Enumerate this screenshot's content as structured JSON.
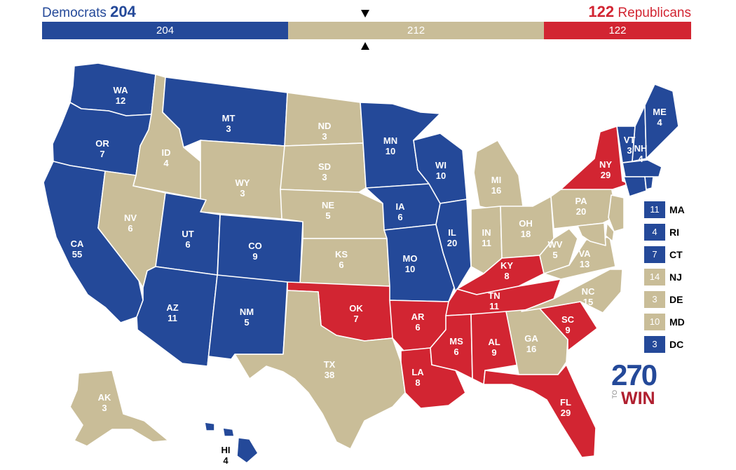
{
  "header": {
    "dem_label": "Democrats",
    "dem_total": "204",
    "rep_total": "122",
    "rep_label": "Republicans"
  },
  "bar": {
    "segments": [
      {
        "name": "democrat",
        "value": 204,
        "label": "204",
        "color": "#244999"
      },
      {
        "name": "tossup",
        "value": 212,
        "label": "212",
        "color": "#c9bd98"
      },
      {
        "name": "republican",
        "value": 122,
        "label": "122",
        "color": "#d22532"
      }
    ]
  },
  "colors": {
    "dem": "#244999",
    "rep": "#d22532",
    "tossup": "#c9bd98"
  },
  "states": [
    {
      "abbr": "WA",
      "ev": "12",
      "party": "dem"
    },
    {
      "abbr": "OR",
      "ev": "7",
      "party": "dem"
    },
    {
      "abbr": "CA",
      "ev": "55",
      "party": "dem"
    },
    {
      "abbr": "ID",
      "ev": "4",
      "party": "tossup"
    },
    {
      "abbr": "NV",
      "ev": "6",
      "party": "tossup"
    },
    {
      "abbr": "MT",
      "ev": "3",
      "party": "dem"
    },
    {
      "abbr": "WY",
      "ev": "3",
      "party": "tossup"
    },
    {
      "abbr": "UT",
      "ev": "6",
      "party": "dem"
    },
    {
      "abbr": "CO",
      "ev": "9",
      "party": "dem"
    },
    {
      "abbr": "AZ",
      "ev": "11",
      "party": "dem"
    },
    {
      "abbr": "NM",
      "ev": "5",
      "party": "dem"
    },
    {
      "abbr": "ND",
      "ev": "3",
      "party": "tossup"
    },
    {
      "abbr": "SD",
      "ev": "3",
      "party": "tossup"
    },
    {
      "abbr": "NE",
      "ev": "5",
      "party": "tossup"
    },
    {
      "abbr": "KS",
      "ev": "6",
      "party": "tossup"
    },
    {
      "abbr": "OK",
      "ev": "7",
      "party": "rep"
    },
    {
      "abbr": "TX",
      "ev": "38",
      "party": "tossup"
    },
    {
      "abbr": "MN",
      "ev": "10",
      "party": "dem"
    },
    {
      "abbr": "IA",
      "ev": "6",
      "party": "dem"
    },
    {
      "abbr": "MO",
      "ev": "10",
      "party": "dem"
    },
    {
      "abbr": "AR",
      "ev": "6",
      "party": "rep"
    },
    {
      "abbr": "LA",
      "ev": "8",
      "party": "rep"
    },
    {
      "abbr": "WI",
      "ev": "10",
      "party": "dem"
    },
    {
      "abbr": "IL",
      "ev": "20",
      "party": "dem"
    },
    {
      "abbr": "MI",
      "ev": "16",
      "party": "tossup"
    },
    {
      "abbr": "IN",
      "ev": "11",
      "party": "tossup"
    },
    {
      "abbr": "OH",
      "ev": "18",
      "party": "tossup"
    },
    {
      "abbr": "KY",
      "ev": "8",
      "party": "rep"
    },
    {
      "abbr": "TN",
      "ev": "11",
      "party": "rep"
    },
    {
      "abbr": "MS",
      "ev": "6",
      "party": "rep"
    },
    {
      "abbr": "AL",
      "ev": "9",
      "party": "rep"
    },
    {
      "abbr": "GA",
      "ev": "16",
      "party": "tossup"
    },
    {
      "abbr": "FL",
      "ev": "29",
      "party": "rep"
    },
    {
      "abbr": "SC",
      "ev": "9",
      "party": "rep"
    },
    {
      "abbr": "NC",
      "ev": "15",
      "party": "tossup"
    },
    {
      "abbr": "VA",
      "ev": "13",
      "party": "tossup"
    },
    {
      "abbr": "WV",
      "ev": "5",
      "party": "tossup"
    },
    {
      "abbr": "PA",
      "ev": "20",
      "party": "tossup"
    },
    {
      "abbr": "NY",
      "ev": "29",
      "party": "rep"
    },
    {
      "abbr": "VT",
      "ev": "3",
      "party": "dem"
    },
    {
      "abbr": "NH",
      "ev": "4",
      "party": "dem"
    },
    {
      "abbr": "ME",
      "ev": "4",
      "party": "dem"
    },
    {
      "abbr": "AK",
      "ev": "3",
      "party": "tossup"
    },
    {
      "abbr": "HI",
      "ev": "4",
      "party": "dem"
    }
  ],
  "small_states": [
    {
      "abbr": "MA",
      "ev": "11",
      "party": "dem"
    },
    {
      "abbr": "RI",
      "ev": "4",
      "party": "dem"
    },
    {
      "abbr": "CT",
      "ev": "7",
      "party": "dem"
    },
    {
      "abbr": "NJ",
      "ev": "14",
      "party": "tossup"
    },
    {
      "abbr": "DE",
      "ev": "3",
      "party": "tossup"
    },
    {
      "abbr": "MD",
      "ev": "10",
      "party": "tossup"
    },
    {
      "abbr": "DC",
      "ev": "3",
      "party": "dem"
    }
  ],
  "logo": {
    "top": "270",
    "to": "TO",
    "bottom": "WIN"
  }
}
